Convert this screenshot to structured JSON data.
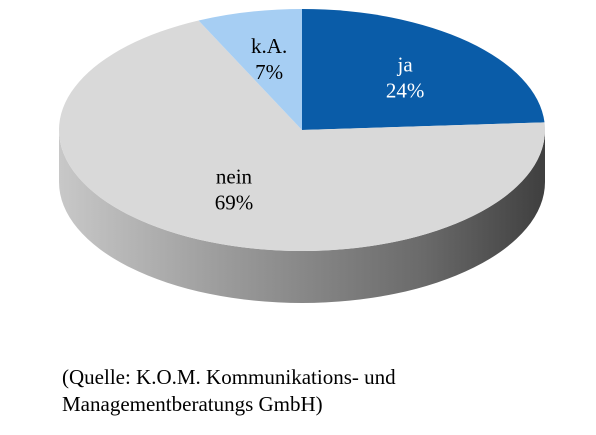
{
  "chart_data": {
    "type": "pie",
    "style": "3d",
    "slices": [
      {
        "label": "ja",
        "value": 24,
        "display": "24%",
        "color": "#0a5ca8",
        "text_color": "#ffffff"
      },
      {
        "label": "nein",
        "value": 69,
        "display": "69%",
        "color": "#d9d9d9",
        "text_color": "#000000"
      },
      {
        "label": "k.A.",
        "value": 7,
        "display": "7%",
        "color": "#a6cef3",
        "text_color": "#000000"
      }
    ],
    "start": "12 o'clock",
    "direction": "clockwise",
    "legend": "none"
  },
  "source_note": {
    "line1": "(Quelle: K.O.M. Kommunikations- und",
    "line2": "Managementberatungs GmbH)"
  }
}
